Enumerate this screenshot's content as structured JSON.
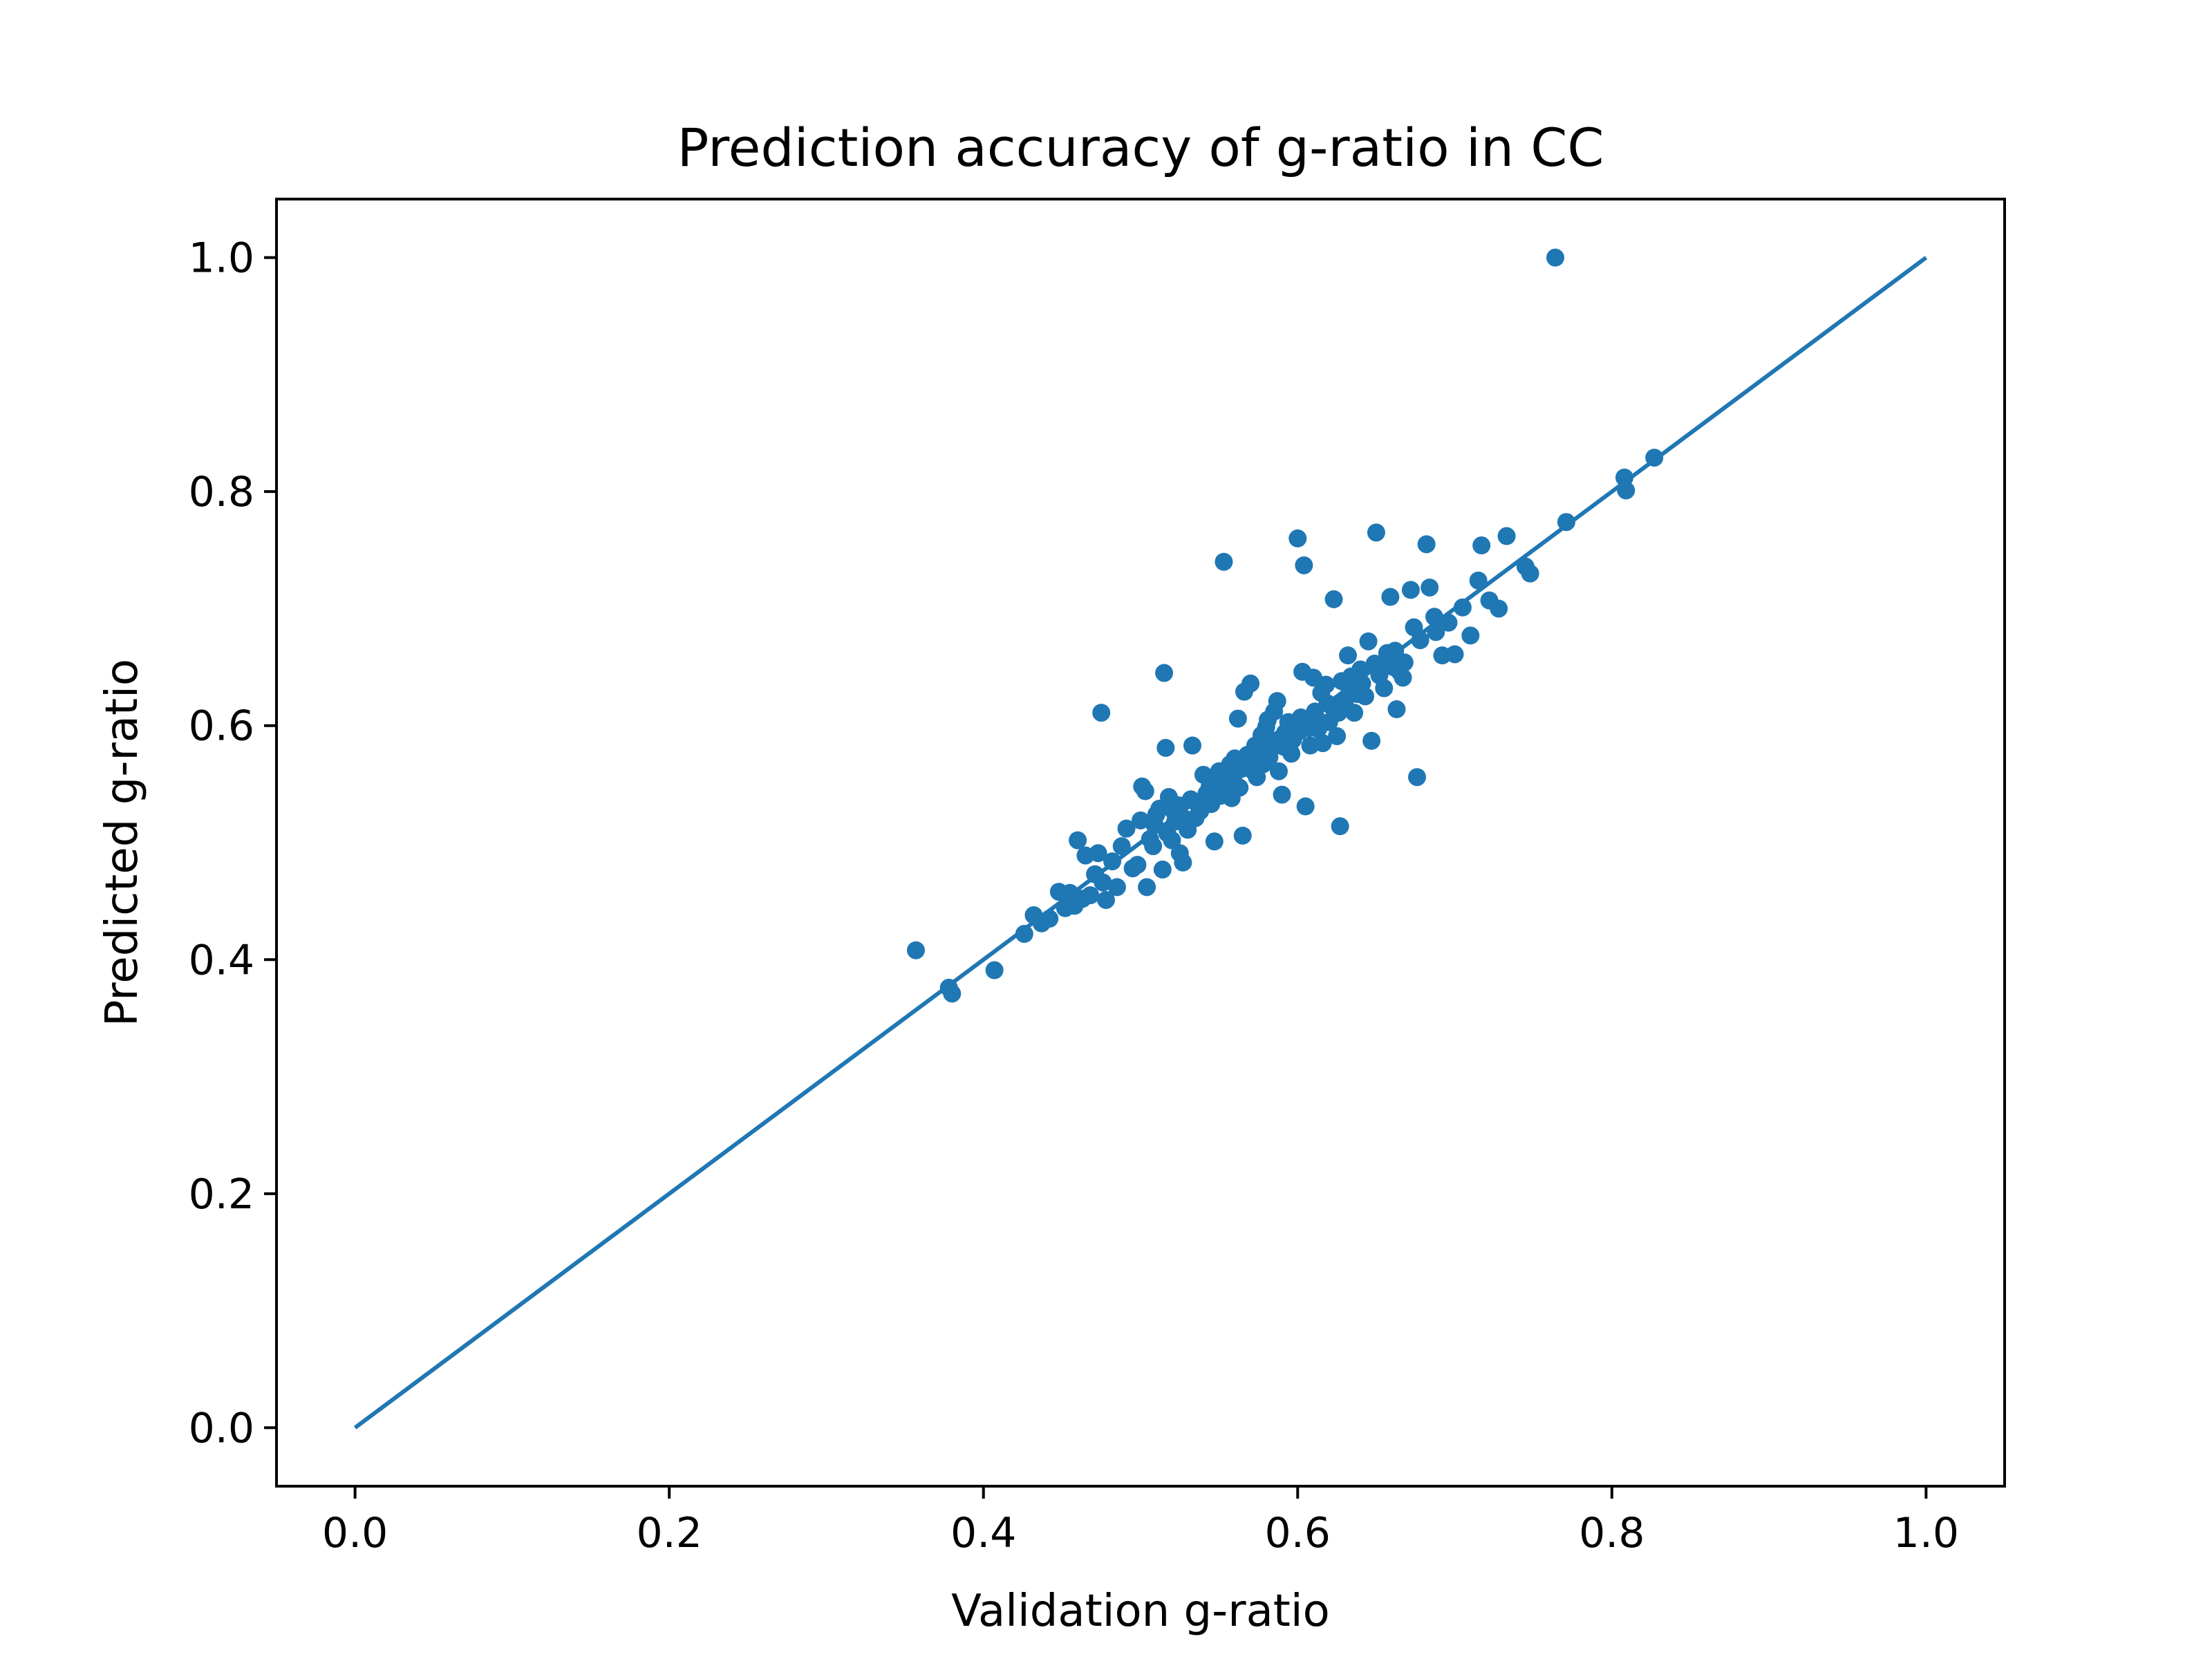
{
  "chart_data": {
    "type": "scatter",
    "title": "Prediction accuracy of g-ratio in CC",
    "xlabel": "Validation g-ratio",
    "ylabel": "Predicted g-ratio",
    "xlim": [
      -0.05,
      1.05
    ],
    "ylim": [
      -0.05,
      1.05
    ],
    "xticks": [
      0.0,
      0.2,
      0.4,
      0.6,
      0.8,
      1.0
    ],
    "yticks": [
      0.0,
      0.2,
      0.4,
      0.6,
      0.8,
      1.0
    ],
    "xtick_labels": [
      "0.0",
      "0.2",
      "0.4",
      "0.6",
      "0.8",
      "1.0"
    ],
    "ytick_labels": [
      "0.0",
      "0.2",
      "0.4",
      "0.6",
      "0.8",
      "1.0"
    ],
    "grid": false,
    "color": "#1f77b4",
    "reference_line": {
      "x": [
        0.0,
        1.0
      ],
      "y": [
        0.0,
        1.0
      ]
    },
    "points": [
      [
        0.357,
        0.408
      ],
      [
        0.378,
        0.376
      ],
      [
        0.38,
        0.371
      ],
      [
        0.407,
        0.391
      ],
      [
        0.426,
        0.422
      ],
      [
        0.432,
        0.438
      ],
      [
        0.437,
        0.431
      ],
      [
        0.442,
        0.435
      ],
      [
        0.448,
        0.458
      ],
      [
        0.452,
        0.444
      ],
      [
        0.455,
        0.457
      ],
      [
        0.458,
        0.446
      ],
      [
        0.46,
        0.502
      ],
      [
        0.463,
        0.452
      ],
      [
        0.465,
        0.489
      ],
      [
        0.468,
        0.455
      ],
      [
        0.471,
        0.473
      ],
      [
        0.473,
        0.491
      ],
      [
        0.476,
        0.466
      ],
      [
        0.478,
        0.451
      ],
      [
        0.475,
        0.611
      ],
      [
        0.482,
        0.484
      ],
      [
        0.485,
        0.462
      ],
      [
        0.488,
        0.497
      ],
      [
        0.491,
        0.512
      ],
      [
        0.495,
        0.478
      ],
      [
        0.498,
        0.481
      ],
      [
        0.5,
        0.519
      ],
      [
        0.501,
        0.548
      ],
      [
        0.503,
        0.544
      ],
      [
        0.504,
        0.462
      ],
      [
        0.506,
        0.503
      ],
      [
        0.508,
        0.497
      ],
      [
        0.51,
        0.524
      ],
      [
        0.512,
        0.529
      ],
      [
        0.514,
        0.477
      ],
      [
        0.515,
        0.645
      ],
      [
        0.516,
        0.581
      ],
      [
        0.518,
        0.539
      ],
      [
        0.52,
        0.502
      ],
      [
        0.522,
        0.518
      ],
      [
        0.524,
        0.532
      ],
      [
        0.525,
        0.491
      ],
      [
        0.527,
        0.483
      ],
      [
        0.53,
        0.511
      ],
      [
        0.532,
        0.537
      ],
      [
        0.533,
        0.583
      ],
      [
        0.535,
        0.521
      ],
      [
        0.538,
        0.527
      ],
      [
        0.54,
        0.558
      ],
      [
        0.542,
        0.542
      ],
      [
        0.545,
        0.533
      ],
      [
        0.547,
        0.501
      ],
      [
        0.549,
        0.551
      ],
      [
        0.55,
        0.561
      ],
      [
        0.552,
        0.546
      ],
      [
        0.553,
        0.74
      ],
      [
        0.555,
        0.554
      ],
      [
        0.557,
        0.567
      ],
      [
        0.558,
        0.538
      ],
      [
        0.56,
        0.572
      ],
      [
        0.562,
        0.606
      ],
      [
        0.563,
        0.547
      ],
      [
        0.565,
        0.506
      ],
      [
        0.566,
        0.629
      ],
      [
        0.568,
        0.575
      ],
      [
        0.57,
        0.636
      ],
      [
        0.571,
        0.562
      ],
      [
        0.573,
        0.583
      ],
      [
        0.574,
        0.556
      ],
      [
        0.575,
        0.578
      ],
      [
        0.577,
        0.592
      ],
      [
        0.578,
        0.567
      ],
      [
        0.58,
        0.599
      ],
      [
        0.581,
        0.605
      ],
      [
        0.582,
        0.573
      ],
      [
        0.584,
        0.587
      ],
      [
        0.585,
        0.612
      ],
      [
        0.587,
        0.621
      ],
      [
        0.588,
        0.561
      ],
      [
        0.59,
        0.541
      ],
      [
        0.591,
        0.582
      ],
      [
        0.592,
        0.594
      ],
      [
        0.594,
        0.603
      ],
      [
        0.596,
        0.576
      ],
      [
        0.597,
        0.588
      ],
      [
        0.599,
        0.6
      ],
      [
        0.6,
        0.76
      ],
      [
        0.601,
        0.595
      ],
      [
        0.603,
        0.646
      ],
      [
        0.604,
        0.737
      ],
      [
        0.605,
        0.531
      ],
      [
        0.606,
        0.602
      ],
      [
        0.608,
        0.583
      ],
      [
        0.61,
        0.641
      ],
      [
        0.611,
        0.612
      ],
      [
        0.613,
        0.597
      ],
      [
        0.615,
        0.628
      ],
      [
        0.616,
        0.585
      ],
      [
        0.618,
        0.635
      ],
      [
        0.62,
        0.603
      ],
      [
        0.622,
        0.616
      ],
      [
        0.623,
        0.708
      ],
      [
        0.625,
        0.591
      ],
      [
        0.627,
        0.514
      ],
      [
        0.628,
        0.638
      ],
      [
        0.63,
        0.62
      ],
      [
        0.632,
        0.66
      ],
      [
        0.634,
        0.642
      ],
      [
        0.636,
        0.611
      ],
      [
        0.638,
        0.627
      ],
      [
        0.64,
        0.648
      ],
      [
        0.643,
        0.625
      ],
      [
        0.645,
        0.672
      ],
      [
        0.647,
        0.587
      ],
      [
        0.649,
        0.653
      ],
      [
        0.65,
        0.765
      ],
      [
        0.652,
        0.643
      ],
      [
        0.655,
        0.632
      ],
      [
        0.657,
        0.662
      ],
      [
        0.659,
        0.71
      ],
      [
        0.661,
        0.65
      ],
      [
        0.663,
        0.614
      ],
      [
        0.665,
        0.646
      ],
      [
        0.668,
        0.654
      ],
      [
        0.672,
        0.716
      ],
      [
        0.674,
        0.684
      ],
      [
        0.676,
        0.556
      ],
      [
        0.678,
        0.673
      ],
      [
        0.682,
        0.755
      ],
      [
        0.684,
        0.718
      ],
      [
        0.688,
        0.68
      ],
      [
        0.692,
        0.66
      ],
      [
        0.696,
        0.688
      ],
      [
        0.7,
        0.661
      ],
      [
        0.705,
        0.701
      ],
      [
        0.71,
        0.677
      ],
      [
        0.715,
        0.724
      ],
      [
        0.717,
        0.754
      ],
      [
        0.722,
        0.707
      ],
      [
        0.728,
        0.7
      ],
      [
        0.733,
        0.762
      ],
      [
        0.745,
        0.736
      ],
      [
        0.748,
        0.73
      ],
      [
        0.764,
        1.0
      ],
      [
        0.771,
        0.774
      ],
      [
        0.808,
        0.812
      ],
      [
        0.809,
        0.801
      ],
      [
        0.827,
        0.829
      ],
      [
        0.509,
        0.515
      ],
      [
        0.517,
        0.508
      ],
      [
        0.521,
        0.527
      ],
      [
        0.529,
        0.52
      ],
      [
        0.537,
        0.531
      ],
      [
        0.544,
        0.548
      ],
      [
        0.551,
        0.54
      ],
      [
        0.559,
        0.556
      ],
      [
        0.564,
        0.563
      ],
      [
        0.569,
        0.571
      ],
      [
        0.576,
        0.569
      ],
      [
        0.583,
        0.58
      ],
      [
        0.589,
        0.589
      ],
      [
        0.595,
        0.584
      ],
      [
        0.602,
        0.607
      ],
      [
        0.607,
        0.598
      ],
      [
        0.612,
        0.606
      ],
      [
        0.619,
        0.619
      ],
      [
        0.626,
        0.611
      ],
      [
        0.633,
        0.629
      ],
      [
        0.641,
        0.636
      ],
      [
        0.654,
        0.651
      ],
      [
        0.662,
        0.664
      ],
      [
        0.667,
        0.641
      ],
      [
        0.687,
        0.693
      ]
    ]
  }
}
